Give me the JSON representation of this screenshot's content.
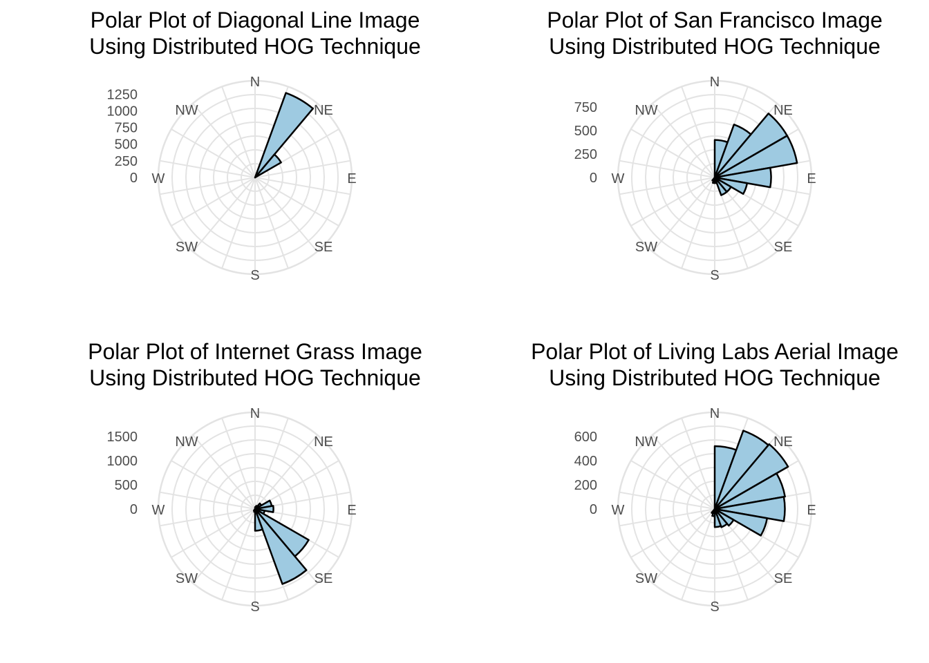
{
  "chart_data": [
    {
      "type": "polar-bar",
      "title_lines": [
        "Polar Plot of Diagonal Line Image",
        "Using Distributed HOG Technique"
      ],
      "direction_labels": [
        "N",
        "NE",
        "E",
        "SE",
        "S",
        "SW",
        "W",
        "NW"
      ],
      "radial_ticks": [
        "0",
        "250",
        "500",
        "750",
        "1000",
        "1250"
      ],
      "rmax": 1450,
      "bins_deg": [
        0,
        20,
        40,
        60,
        80,
        100,
        120,
        140,
        160,
        180,
        200,
        220,
        240,
        260,
        280,
        300,
        320,
        340
      ],
      "values": [
        0,
        1350,
        450,
        0,
        0,
        0,
        0,
        0,
        0,
        0,
        0,
        0,
        0,
        0,
        0,
        0,
        0,
        0
      ]
    },
    {
      "type": "polar-bar",
      "title_lines": [
        "Polar Plot of San Francisco Image",
        "Using Distributed HOG Technique"
      ],
      "direction_labels": [
        "N",
        "NE",
        "E",
        "SE",
        "S",
        "SW",
        "W",
        "NW"
      ],
      "radial_ticks": [
        "0",
        "250",
        "500",
        "750"
      ],
      "rmax": 1030,
      "bins_deg": [
        0,
        20,
        40,
        60,
        80,
        100,
        120,
        140,
        160,
        180,
        200,
        220,
        240,
        260,
        280,
        300,
        320,
        340
      ],
      "values": [
        400,
        600,
        890,
        890,
        600,
        350,
        200,
        200,
        60,
        60,
        40,
        0,
        0,
        0,
        0,
        0,
        0,
        0
      ]
    },
    {
      "type": "polar-bar",
      "title_lines": [
        "Polar Plot of Internet Grass Image",
        "Using Distributed HOG Technique"
      ],
      "direction_labels": [
        "N",
        "NE",
        "E",
        "SE",
        "S",
        "SW",
        "W",
        "NW"
      ],
      "radial_ticks": [
        "0",
        "500",
        "1000",
        "1500"
      ],
      "rmax": 2000,
      "bins_deg": [
        0,
        20,
        40,
        60,
        80,
        100,
        120,
        140,
        160,
        180,
        200,
        220,
        240,
        260,
        280,
        300,
        320,
        340
      ],
      "values": [
        40,
        70,
        150,
        350,
        380,
        200,
        1280,
        1650,
        450,
        60,
        40,
        0,
        0,
        0,
        0,
        0,
        0,
        0
      ]
    },
    {
      "type": "polar-bar",
      "title_lines": [
        "Polar Plot of Living Labs Aerial Image",
        "Using Distributed HOG Technique"
      ],
      "direction_labels": [
        "N",
        "NE",
        "E",
        "SE",
        "S",
        "SW",
        "W",
        "NW"
      ],
      "radial_ticks": [
        "0",
        "200",
        "400",
        "600"
      ],
      "rmax": 800,
      "bins_deg": [
        0,
        20,
        40,
        60,
        80,
        100,
        120,
        140,
        160,
        180,
        200,
        220,
        240,
        260,
        280,
        300,
        320,
        340
      ],
      "values": [
        520,
        690,
        700,
        590,
        580,
        440,
        180,
        160,
        150,
        60,
        40,
        0,
        0,
        0,
        0,
        0,
        0,
        0
      ]
    }
  ]
}
